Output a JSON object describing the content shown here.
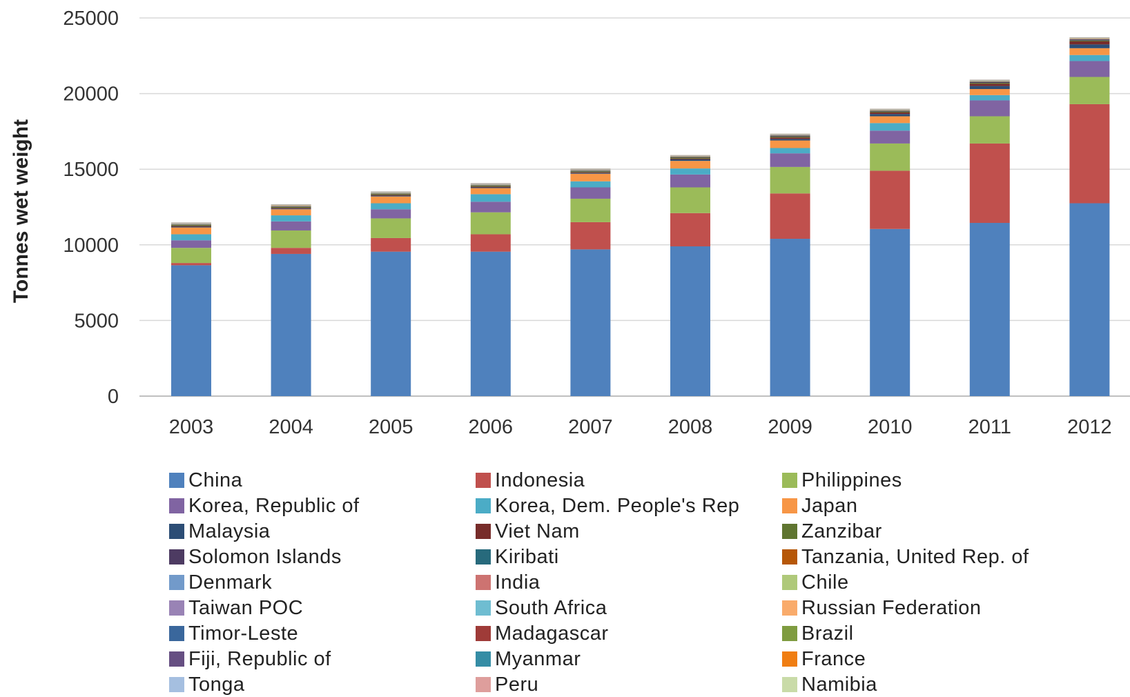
{
  "chart_data": {
    "type": "bar",
    "stacked": true,
    "ylabel": "Tonnes wet weight",
    "xlabel": "",
    "ylim": [
      0,
      25000
    ],
    "yticks": [
      0,
      5000,
      10000,
      15000,
      20000,
      25000
    ],
    "grid": true,
    "legend_position": "bottom",
    "categories": [
      "2003",
      "2004",
      "2005",
      "2006",
      "2007",
      "2008",
      "2009",
      "2010",
      "2011",
      "2012"
    ],
    "series": [
      {
        "name": "China",
        "color": "#4F81BD",
        "values": [
          8650,
          9400,
          9550,
          9550,
          9700,
          9900,
          10400,
          11050,
          11450,
          12750
        ]
      },
      {
        "name": "Indonesia",
        "color": "#C0504D",
        "values": [
          150,
          400,
          900,
          1150,
          1800,
          2200,
          3000,
          3850,
          5250,
          6550
        ]
      },
      {
        "name": "Philippines",
        "color": "#9BBB59",
        "values": [
          1000,
          1150,
          1300,
          1450,
          1550,
          1700,
          1750,
          1800,
          1800,
          1800
        ]
      },
      {
        "name": "Korea, Republic of",
        "color": "#8064A2",
        "values": [
          500,
          600,
          600,
          700,
          750,
          850,
          900,
          850,
          1050,
          1050
        ]
      },
      {
        "name": "Korea, Dem. People's Rep",
        "color": "#4BACC6",
        "values": [
          400,
          400,
          400,
          500,
          400,
          400,
          350,
          500,
          350,
          400
        ]
      },
      {
        "name": "Japan",
        "color": "#F79646",
        "values": [
          450,
          400,
          450,
          400,
          500,
          500,
          500,
          450,
          400,
          450
        ]
      },
      {
        "name": "Malaysia",
        "color": "#2C4D75",
        "values": [
          50,
          50,
          50,
          50,
          50,
          100,
          100,
          150,
          200,
          250
        ]
      },
      {
        "name": "Viet Nam",
        "color": "#772C2A",
        "values": [
          50,
          50,
          50,
          50,
          50,
          50,
          100,
          100,
          150,
          200
        ]
      },
      {
        "name": "Zanzibar",
        "color": "#5F7530",
        "values": [
          60,
          60,
          60,
          60,
          60,
          60,
          60,
          60,
          60,
          60
        ]
      },
      {
        "name": "Solomon Islands",
        "color": "#4D3B62",
        "values": [
          20,
          20,
          20,
          20,
          30,
          30,
          40,
          40,
          60,
          60
        ]
      },
      {
        "name": "Kiribati",
        "color": "#276A7C",
        "values": [
          20,
          20,
          20,
          20,
          20,
          20,
          20,
          20,
          20,
          20
        ]
      },
      {
        "name": "Tanzania, United Rep. of",
        "color": "#B65708",
        "values": [
          20,
          20,
          20,
          20,
          20,
          20,
          20,
          20,
          20,
          20
        ]
      },
      {
        "name": "Denmark",
        "color": "#729ACA",
        "values": [
          10,
          10,
          10,
          10,
          10,
          10,
          10,
          10,
          10,
          10
        ]
      },
      {
        "name": "India",
        "color": "#CD7371",
        "values": [
          10,
          10,
          10,
          10,
          10,
          10,
          10,
          10,
          10,
          10
        ]
      },
      {
        "name": "Chile",
        "color": "#AFC97A",
        "values": [
          20,
          20,
          20,
          20,
          20,
          20,
          20,
          20,
          20,
          20
        ]
      },
      {
        "name": "Taiwan POC",
        "color": "#9983B5",
        "values": [
          10,
          10,
          10,
          10,
          10,
          10,
          10,
          10,
          10,
          10
        ]
      },
      {
        "name": "South Africa",
        "color": "#6FBDD1",
        "values": [
          10,
          10,
          10,
          10,
          10,
          10,
          10,
          10,
          10,
          10
        ]
      },
      {
        "name": "Russian Federation",
        "color": "#F9AB6B",
        "values": [
          10,
          10,
          10,
          10,
          10,
          10,
          10,
          10,
          10,
          10
        ]
      },
      {
        "name": "Timor-Leste",
        "color": "#3A679C",
        "values": [
          5,
          5,
          5,
          5,
          5,
          5,
          5,
          5,
          5,
          5
        ]
      },
      {
        "name": "Madagascar",
        "color": "#9F3B38",
        "values": [
          5,
          5,
          5,
          5,
          5,
          5,
          5,
          5,
          5,
          5
        ]
      },
      {
        "name": "Brazil",
        "color": "#7F9C40",
        "values": [
          5,
          5,
          5,
          5,
          5,
          5,
          5,
          5,
          5,
          5
        ]
      },
      {
        "name": "Fiji, Republic of",
        "color": "#664F82",
        "values": [
          5,
          5,
          5,
          5,
          5,
          5,
          5,
          5,
          5,
          5
        ]
      },
      {
        "name": "Myanmar",
        "color": "#358DA5",
        "values": [
          5,
          5,
          5,
          5,
          5,
          5,
          5,
          5,
          5,
          5
        ]
      },
      {
        "name": "France",
        "color": "#F07E13",
        "values": [
          5,
          5,
          5,
          5,
          5,
          5,
          5,
          5,
          5,
          5
        ]
      },
      {
        "name": "Tonga",
        "color": "#A5BFE0",
        "values": [
          5,
          5,
          5,
          5,
          5,
          5,
          5,
          5,
          5,
          5
        ]
      },
      {
        "name": "Peru",
        "color": "#DE9E9C",
        "values": [
          5,
          5,
          5,
          5,
          5,
          5,
          5,
          5,
          5,
          5
        ]
      },
      {
        "name": "Namibia",
        "color": "#C9DBA8",
        "values": [
          5,
          5,
          5,
          5,
          5,
          5,
          5,
          5,
          5,
          5
        ]
      }
    ]
  }
}
